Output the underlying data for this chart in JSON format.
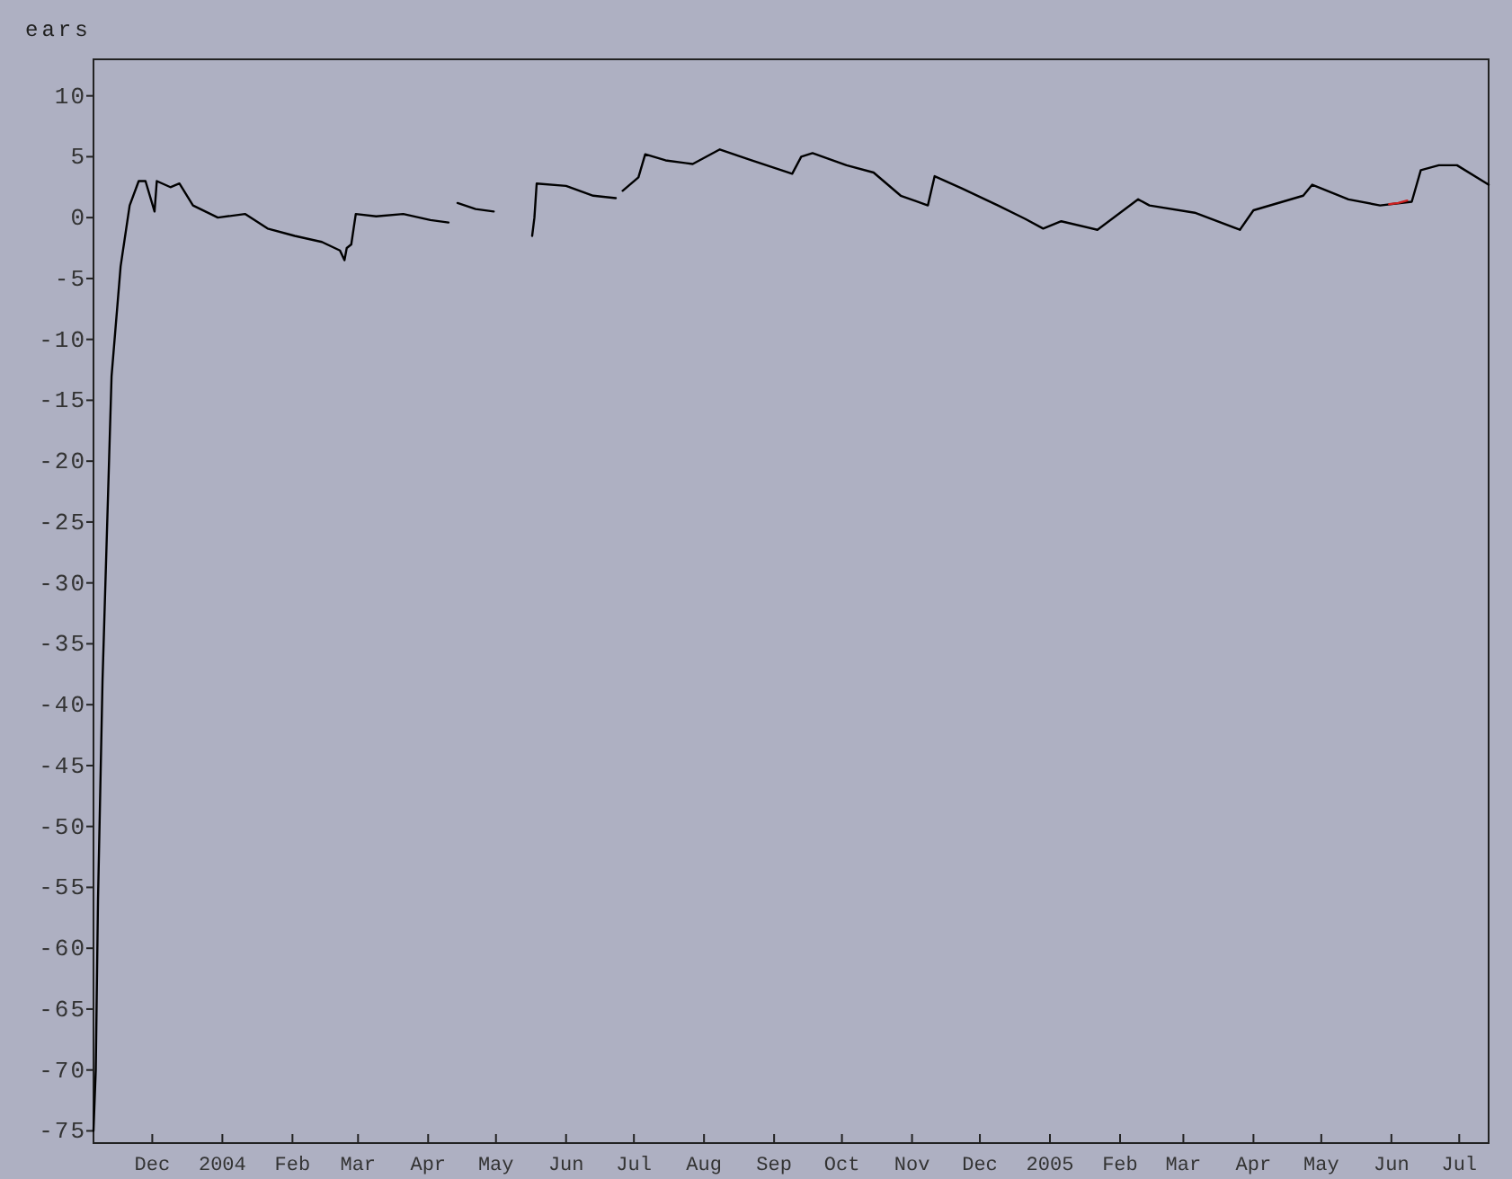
{
  "chart_data": {
    "type": "line",
    "ylabel": "ears",
    "xlim": [
      "2003-11-05",
      "2005-07-14"
    ],
    "ylim": [
      -76,
      13
    ],
    "yticks": [
      10,
      5,
      0,
      -5,
      -10,
      -15,
      -20,
      -25,
      -30,
      -35,
      -40,
      -45,
      -50,
      -55,
      -60,
      -65,
      -70,
      -75
    ],
    "xticks": [
      {
        "value": "2003-12-01",
        "label": "Dec"
      },
      {
        "value": "2004-01-01",
        "label": "2004"
      },
      {
        "value": "2004-02-01",
        "label": "Feb"
      },
      {
        "value": "2004-03-01",
        "label": "Mar"
      },
      {
        "value": "2004-04-01",
        "label": "Apr"
      },
      {
        "value": "2004-05-01",
        "label": "May"
      },
      {
        "value": "2004-06-01",
        "label": "Jun"
      },
      {
        "value": "2004-07-01",
        "label": "Jul"
      },
      {
        "value": "2004-08-01",
        "label": "Aug"
      },
      {
        "value": "2004-09-01",
        "label": "Sep"
      },
      {
        "value": "2004-10-01",
        "label": "Oct"
      },
      {
        "value": "2004-11-01",
        "label": "Nov"
      },
      {
        "value": "2004-12-01",
        "label": "Dec"
      },
      {
        "value": "2005-01-01",
        "label": "2005"
      },
      {
        "value": "2005-02-01",
        "label": "Feb"
      },
      {
        "value": "2005-03-01",
        "label": "Mar"
      },
      {
        "value": "2005-04-01",
        "label": "Apr"
      },
      {
        "value": "2005-05-01",
        "label": "May"
      },
      {
        "value": "2005-06-01",
        "label": "Jun"
      },
      {
        "value": "2005-07-01",
        "label": "Jul"
      }
    ],
    "grid": false,
    "marker": "none",
    "line_style": "solid",
    "series": [
      {
        "color": "#000000",
        "x": [
          "2003-11-05",
          "2003-11-06",
          "2003-11-07",
          "2003-11-09",
          "2003-11-13",
          "2003-11-17",
          "2003-11-21",
          "2003-11-25",
          "2003-11-28",
          "2003-12-02",
          "2003-12-03",
          "2003-12-09",
          "2003-12-13",
          "2003-12-19",
          "2003-12-30",
          "2004-01-11",
          "2004-01-21",
          "2004-02-02",
          "2004-02-14",
          "2004-02-22",
          "2004-02-24",
          "2004-02-25",
          "2004-02-27",
          "2004-02-29",
          "2004-03-09",
          "2004-03-21",
          "2004-04-02",
          "2004-04-10",
          "2004-04-12",
          "2004-04-14",
          "2004-04-22",
          "2004-04-30",
          "2004-05-10",
          "2004-05-17",
          "2004-05-18",
          "2004-05-19",
          "2004-06-01",
          "2004-06-13",
          "2004-06-23",
          "2004-06-24",
          "2004-06-26",
          "2004-07-03",
          "2004-07-06",
          "2004-07-15",
          "2004-07-27",
          "2004-08-08",
          "2004-08-22",
          "2004-09-09",
          "2004-09-13",
          "2004-09-18",
          "2004-10-03",
          "2004-10-15",
          "2004-10-27",
          "2004-11-08",
          "2004-11-11",
          "2004-11-23",
          "2004-12-09",
          "2004-12-21",
          "2004-12-29",
          "2005-01-06",
          "2005-01-22",
          "2005-02-09",
          "2005-02-14",
          "2005-03-06",
          "2005-03-26",
          "2005-04-01",
          "2005-04-23",
          "2005-04-27",
          "2005-05-13",
          "2005-05-27",
          "2005-06-10",
          "2005-06-14",
          "2005-06-22",
          "2005-06-30",
          "2005-07-14"
        ],
        "values": [
          -75,
          -70,
          -56,
          -38,
          -13,
          -4,
          1,
          3,
          3,
          0.5,
          3,
          2.5,
          2.8,
          1,
          0,
          0.3,
          -0.9,
          -1.5,
          -2,
          -2.7,
          -3.5,
          -2.5,
          -2.2,
          0.3,
          0.1,
          0.3,
          -0.2,
          -0.4,
          null,
          1.2,
          0.7,
          0.5,
          null,
          -1.5,
          0,
          2.8,
          2.6,
          1.8,
          1.6,
          null,
          2.2,
          3.3,
          5.2,
          4.7,
          4.4,
          5.6,
          4.7,
          3.6,
          5,
          5.3,
          4.3,
          3.7,
          1.8,
          1,
          3.4,
          2.4,
          1,
          -0.1,
          -0.9,
          -0.3,
          -1,
          1.5,
          1,
          0.4,
          -1,
          0.6,
          1.8,
          2.7,
          1.5,
          1,
          1.3,
          3.9,
          4.3,
          4.3,
          2.7
        ]
      },
      {
        "color": "#cc2020",
        "x": [
          "2005-05-31",
          "2005-06-04",
          "2005-06-08"
        ],
        "values": [
          1.1,
          1.2,
          1.4
        ]
      }
    ]
  }
}
